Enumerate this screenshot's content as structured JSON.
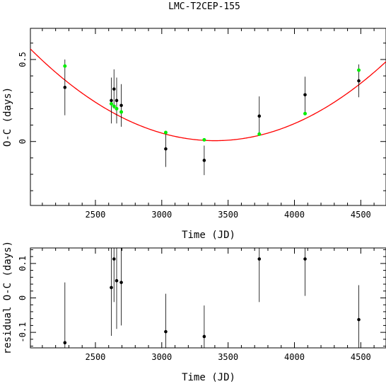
{
  "title": "LMC-T2CEP-155",
  "colors": {
    "fit": "#ff0000",
    "model_point": "#00ee00",
    "data_point": "#000000",
    "axis": "#000000"
  },
  "chart_data": [
    {
      "type": "scatter",
      "panel": "top",
      "xlabel": "Time (JD)",
      "ylabel": "O-C (days)",
      "xlim": [
        2010,
        4690
      ],
      "ylim": [
        -0.39,
        0.69
      ],
      "xticks": [
        2500,
        3000,
        3500,
        4000,
        4500
      ],
      "yticks": [
        0,
        0.5
      ],
      "ytick_labels": [
        "0",
        "0.5"
      ],
      "grid": false,
      "fit_curve": {
        "type": "quadratic",
        "vertex_x": 3400,
        "vertex_y": 0.005,
        "coef_a": 2.895e-07
      },
      "observed": [
        {
          "x": 2270,
          "y": 0.33,
          "err": 0.17
        },
        {
          "x": 2620,
          "y": 0.25,
          "err": 0.14
        },
        {
          "x": 2640,
          "y": 0.32,
          "err": 0.12
        },
        {
          "x": 2660,
          "y": 0.25,
          "err": 0.14
        },
        {
          "x": 2695,
          "y": 0.22,
          "err": 0.13
        },
        {
          "x": 3030,
          "y": -0.045,
          "err": 0.11
        },
        {
          "x": 3320,
          "y": -0.115,
          "err": 0.09
        },
        {
          "x": 3735,
          "y": 0.155,
          "err": 0.12
        },
        {
          "x": 4080,
          "y": 0.285,
          "err": 0.11
        },
        {
          "x": 4485,
          "y": 0.37,
          "err": 0.1
        }
      ],
      "model": [
        {
          "x": 2270,
          "y": 0.46
        },
        {
          "x": 2620,
          "y": 0.23
        },
        {
          "x": 2640,
          "y": 0.215
        },
        {
          "x": 2660,
          "y": 0.2
        },
        {
          "x": 2695,
          "y": 0.18
        },
        {
          "x": 3030,
          "y": 0.055
        },
        {
          "x": 3320,
          "y": 0.01
        },
        {
          "x": 3735,
          "y": 0.045
        },
        {
          "x": 4080,
          "y": 0.17
        },
        {
          "x": 4485,
          "y": 0.435
        }
      ]
    },
    {
      "type": "scatter",
      "panel": "bottom",
      "xlabel": "Time (JD)",
      "ylabel": "residual O-C (days)",
      "xlim": [
        2010,
        4690
      ],
      "ylim": [
        -0.145,
        0.145
      ],
      "xticks": [
        2500,
        3000,
        3500,
        4000,
        4500
      ],
      "yticks": [
        -0.1,
        0,
        0.1
      ],
      "ytick_labels": [
        "-0.1",
        "0",
        "0.1"
      ],
      "grid": false,
      "residuals": [
        {
          "x": 2270,
          "y": -0.13,
          "err": 0.175
        },
        {
          "x": 2620,
          "y": 0.03,
          "err": 0.14
        },
        {
          "x": 2640,
          "y": 0.113,
          "err": 0.125
        },
        {
          "x": 2660,
          "y": 0.05,
          "err": 0.14
        },
        {
          "x": 2695,
          "y": 0.045,
          "err": 0.125
        },
        {
          "x": 3030,
          "y": -0.098,
          "err": 0.11
        },
        {
          "x": 3320,
          "y": -0.112,
          "err": 0.09
        },
        {
          "x": 3735,
          "y": 0.113,
          "err": 0.125
        },
        {
          "x": 4080,
          "y": 0.113,
          "err": 0.107
        },
        {
          "x": 4485,
          "y": -0.063,
          "err": 0.1
        }
      ]
    }
  ]
}
